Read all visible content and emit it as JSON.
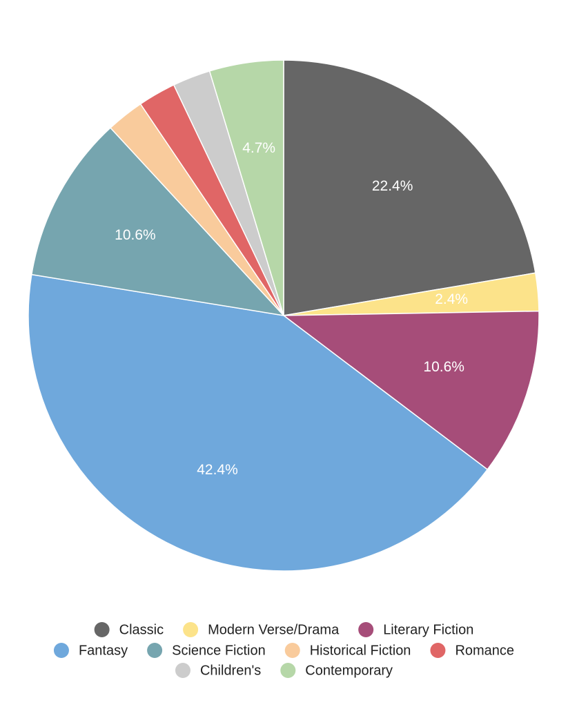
{
  "chart_data": {
    "type": "pie",
    "categories": [
      "Classic",
      "Modern Verse/Drama",
      "Literary Fiction",
      "Fantasy",
      "Science Fiction",
      "Historical Fiction",
      "Romance",
      "Children's",
      "Contemporary"
    ],
    "values": [
      22.4,
      2.4,
      10.6,
      42.4,
      10.6,
      2.4,
      2.4,
      2.4,
      4.7
    ],
    "labels": [
      "22.4%",
      "2.4%",
      "10.6%",
      "42.4%",
      "10.6%",
      "",
      "",
      "",
      "4.7%"
    ],
    "colors": [
      "#666666",
      "#FCE38A",
      "#A64D79",
      "#6FA8DC",
      "#76A5AF",
      "#F9CB9C",
      "#E06666",
      "#CCCCCC",
      "#B6D7A8"
    ],
    "legend_position": "bottom",
    "title": ""
  }
}
